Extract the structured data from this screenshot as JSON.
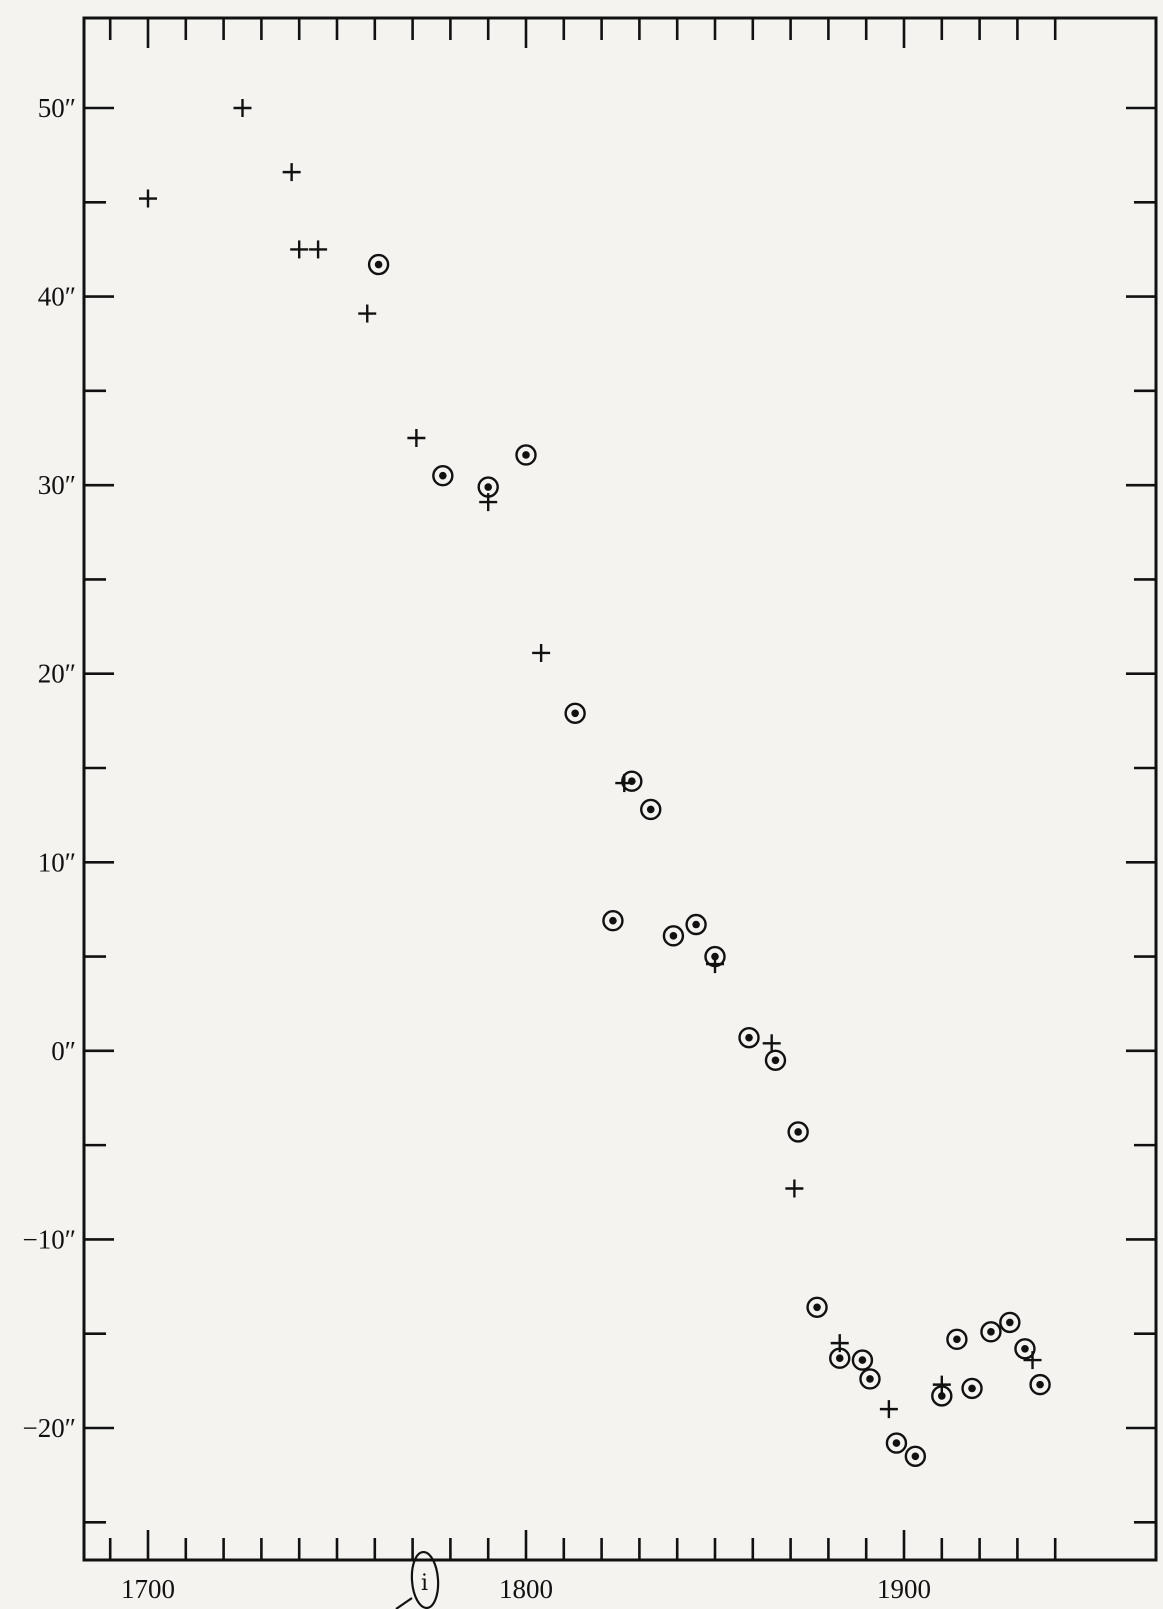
{
  "chart_data": {
    "type": "scatter",
    "title": "",
    "xlabel": "",
    "ylabel": "",
    "xlim": [
      1682,
      1942
    ],
    "ylim": [
      -25,
      55
    ],
    "x_major_ticks": [
      1700,
      1800,
      1900
    ],
    "x_tick_labels": [
      "1700",
      "1800",
      "1900"
    ],
    "x_minor_step": 10,
    "y_major_ticks": [
      50,
      40,
      30,
      20,
      10,
      0,
      -10,
      -20
    ],
    "y_tick_labels": [
      "50″",
      "40″",
      "30″",
      "20″",
      "10″",
      "0″",
      "−10″",
      "−20″"
    ],
    "y_minor_step": 5,
    "grid": false,
    "legend": "none",
    "series": [
      {
        "marker": "plus",
        "points": [
          [
            1700,
            45.2
          ],
          [
            1725,
            50.0
          ],
          [
            1738,
            46.6
          ],
          [
            1740,
            42.5
          ],
          [
            1745,
            42.5
          ],
          [
            1758,
            39.1
          ],
          [
            1771,
            32.5
          ],
          [
            1790,
            29.1
          ],
          [
            1804,
            21.1
          ],
          [
            1826,
            14.2
          ],
          [
            1850,
            4.6
          ],
          [
            1865,
            0.4
          ],
          [
            1871,
            -7.3
          ],
          [
            1883,
            -15.5
          ],
          [
            1896,
            -19.0
          ],
          [
            1910,
            -17.7
          ],
          [
            1934,
            -16.4
          ]
        ]
      },
      {
        "marker": "circled-dot",
        "points": [
          [
            1761,
            41.7
          ],
          [
            1778,
            30.5
          ],
          [
            1790,
            29.9
          ],
          [
            1800,
            31.6
          ],
          [
            1813,
            17.9
          ],
          [
            1828,
            14.3
          ],
          [
            1833,
            12.8
          ],
          [
            1823,
            6.9
          ],
          [
            1839,
            6.1
          ],
          [
            1845,
            6.7
          ],
          [
            1850,
            5.0
          ],
          [
            1859,
            0.7
          ],
          [
            1866,
            -0.5
          ],
          [
            1872,
            -4.3
          ],
          [
            1877,
            -13.6
          ],
          [
            1883,
            -16.3
          ],
          [
            1889,
            -16.4
          ],
          [
            1891,
            -17.4
          ],
          [
            1898,
            -20.8
          ],
          [
            1903,
            -21.5
          ],
          [
            1910,
            -18.3
          ],
          [
            1914,
            -15.3
          ],
          [
            1918,
            -17.9
          ],
          [
            1923,
            -14.9
          ],
          [
            1928,
            -14.4
          ],
          [
            1932,
            -15.8
          ],
          [
            1936,
            -17.7
          ]
        ]
      }
    ]
  },
  "annotations": {
    "handwritten_circled_mark": "i"
  }
}
